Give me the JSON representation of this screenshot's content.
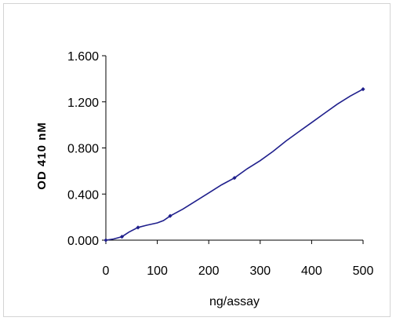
{
  "chart_data": {
    "type": "line",
    "title": "",
    "xlabel": "ng/assay",
    "ylabel": "OD 410 nM",
    "xlim": [
      0,
      500
    ],
    "ylim": [
      0,
      1.6
    ],
    "x_ticks": [
      "0",
      "100",
      "200",
      "300",
      "400",
      "500"
    ],
    "y_ticks": [
      "0.000",
      "0.400",
      "0.800",
      "1.200",
      "1.600"
    ],
    "grid": false,
    "legend": "none",
    "line_color": "#1f1f8c",
    "series": [
      {
        "markers": true,
        "x": [
          0,
          31.25,
          62.5,
          125,
          250,
          500
        ],
        "y": [
          0.0,
          0.03,
          0.11,
          0.21,
          0.54,
          1.31
        ]
      }
    ],
    "smooth_curve": {
      "x": [
        0,
        15,
        31.25,
        45,
        62.5,
        80,
        100,
        112,
        125,
        150,
        175,
        200,
        225,
        250,
        275,
        300,
        325,
        350,
        375,
        400,
        425,
        450,
        475,
        500
      ],
      "y": [
        0.0,
        0.01,
        0.03,
        0.07,
        0.11,
        0.13,
        0.15,
        0.17,
        0.21,
        0.27,
        0.34,
        0.41,
        0.48,
        0.54,
        0.62,
        0.69,
        0.77,
        0.86,
        0.94,
        1.02,
        1.1,
        1.18,
        1.25,
        1.31
      ]
    }
  }
}
